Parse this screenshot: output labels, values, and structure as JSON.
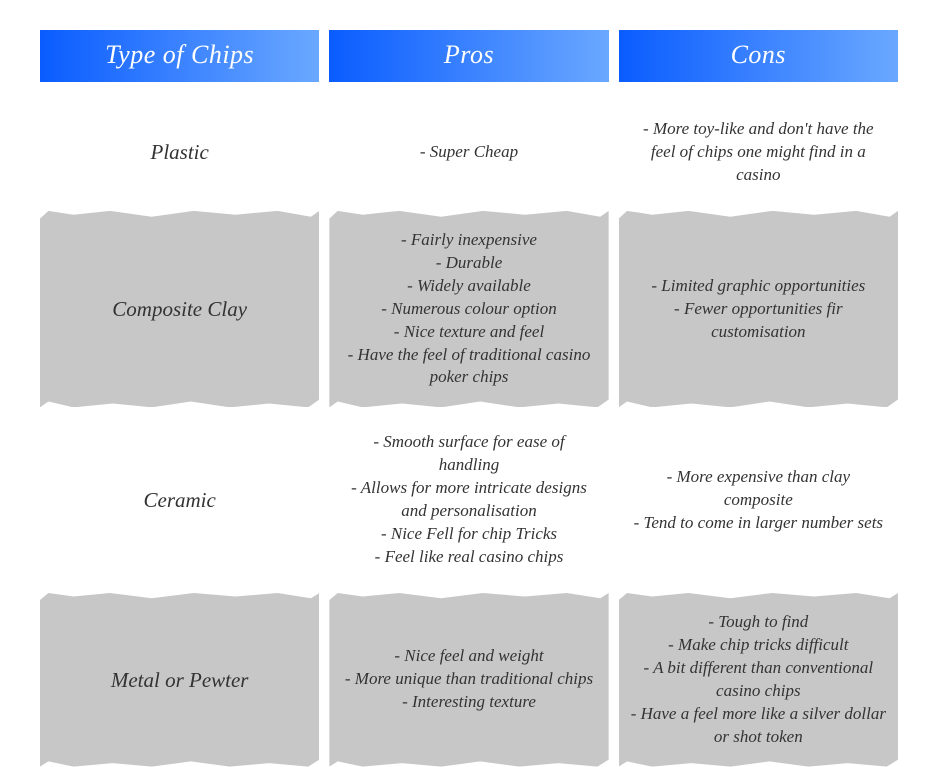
{
  "colors": {
    "header_gradient_start": "#0a5cff",
    "header_gradient_end": "#6aa8ff",
    "header_text": "#ffffff",
    "body_text": "#333333",
    "shade_bg": "#c7c7c7",
    "page_bg": "#ffffff"
  },
  "typography": {
    "font_family": "Segoe Script, Comic Sans MS, cursive",
    "header_fontsize": 26,
    "type_fontsize": 21,
    "body_fontsize": 17,
    "style": "italic"
  },
  "structure": {
    "type": "table",
    "columns": 3,
    "rows": 4,
    "shaded_rows": [
      1,
      3
    ]
  },
  "headers": [
    "Type of Chips",
    "Pros",
    "Cons"
  ],
  "rows": [
    {
      "type": "Plastic",
      "pros": [
        "- Super Cheap"
      ],
      "cons": [
        "- More toy-like and don't have the feel of chips one might find in a casino"
      ]
    },
    {
      "type": "Composite Clay",
      "pros": [
        "- Fairly inexpensive",
        "- Durable",
        "- Widely available",
        "- Numerous colour option",
        "- Nice texture and feel",
        "- Have the feel of traditional casino poker chips"
      ],
      "cons": [
        "- Limited graphic opportunities",
        "- Fewer opportunities fir customisation"
      ]
    },
    {
      "type": "Ceramic",
      "pros": [
        "- Smooth surface for ease of handling",
        "- Allows for more intricate designs and personalisation",
        "- Nice Fell for chip Tricks",
        "- Feel like real casino chips"
      ],
      "cons": [
        "- More expensive than clay composite",
        "- Tend to come in larger number sets"
      ]
    },
    {
      "type": "Metal or Pewter",
      "pros": [
        "- Nice feel and weight",
        "- More unique than traditional chips",
        "- Interesting texture"
      ],
      "cons": [
        "- Tough to find",
        "- Make chip tricks difficult",
        "- A bit different than conventional casino chips",
        "- Have a feel more like a silver dollar or shot token"
      ]
    }
  ]
}
